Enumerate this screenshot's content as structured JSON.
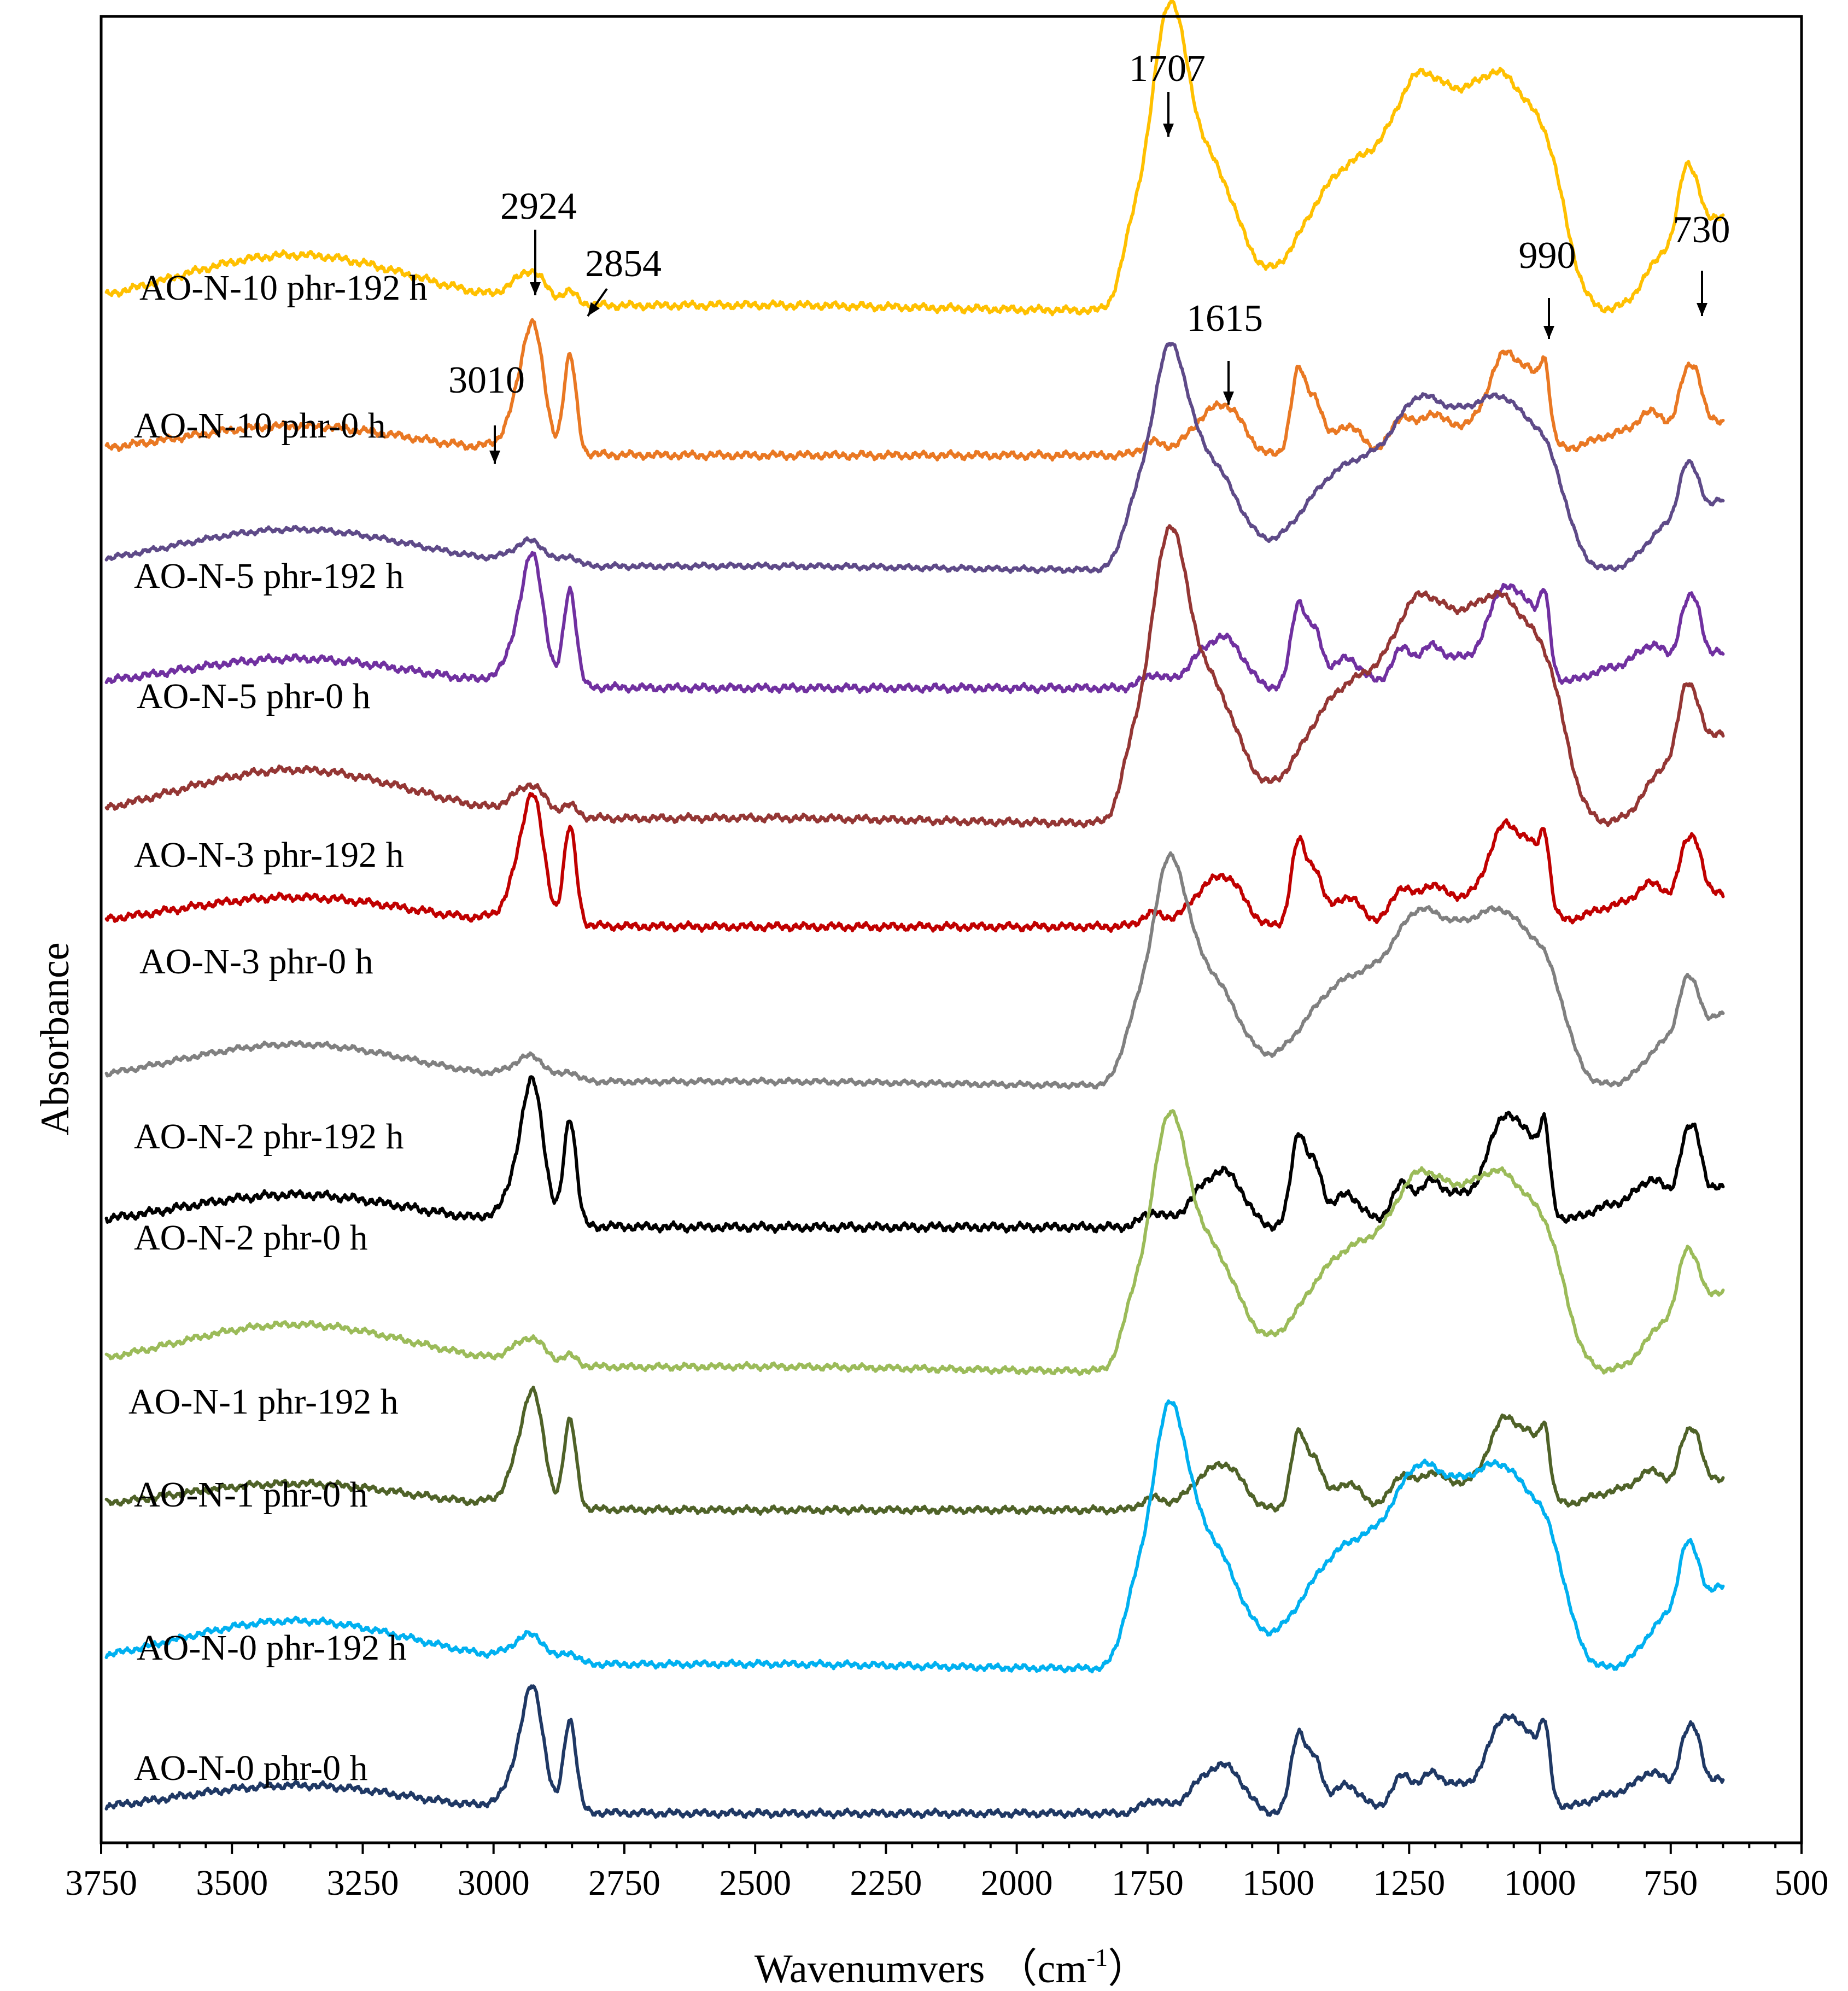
{
  "chart_data": {
    "type": "line",
    "title": "",
    "xlabel": "Wavenumvers （cm ⁻¹）",
    "xlabel_main": "Wavenumvers",
    "xlabel_unit_open": "（cm",
    "xlabel_unit_sup": "-1",
    "xlabel_unit_close": "）",
    "ylabel": "Absorbance",
    "xlim": [
      3750,
      500
    ],
    "x_reversed": true,
    "y_ticks_shown": false,
    "legend": "inline labels left",
    "grid": false,
    "x_ticks": [
      3750,
      3500,
      3250,
      3000,
      2750,
      2500,
      2250,
      2000,
      1750,
      1500,
      1250,
      1000,
      750,
      500
    ],
    "series": [
      {
        "name": "AO-N-10 phr-192 h",
        "color": "#FFC000",
        "offset": 26.0,
        "type": "aged",
        "scale": 1.0,
        "variant": 0
      },
      {
        "name": "AO-N-10 phr-0 h",
        "color": "#E97823",
        "offset": 23.55,
        "type": "fresh",
        "scale": 1.0,
        "variant": 0
      },
      {
        "name": "AO-N-5 phr-192 h",
        "color": "#5E4A88",
        "offset": 21.6,
        "type": "aged",
        "scale": 0.73,
        "variant": 1
      },
      {
        "name": "AO-N-5 phr-0 h",
        "color": "#7030A0",
        "offset": 19.6,
        "type": "fresh",
        "scale": 1.0,
        "variant": 1
      },
      {
        "name": "AO-N-3 phr-192 h",
        "color": "#943634",
        "offset": 17.3,
        "type": "aged",
        "scale": 0.96,
        "variant": 2
      },
      {
        "name": "AO-N-3 phr-0 h",
        "color": "#C00000",
        "offset": 15.55,
        "type": "fresh",
        "scale": 1.0,
        "variant": 2
      },
      {
        "name": "AO-N-2 phr-192 h",
        "color": "#808080",
        "offset": 12.85,
        "type": "aged",
        "scale": 0.74,
        "variant": 3
      },
      {
        "name": "AO-N-2 phr-0 h",
        "color": "#000000",
        "offset": 10.45,
        "type": "fresh",
        "scale": 1.1,
        "variant": 3
      },
      {
        "name": "AO-N-1 phr-192 h",
        "color": "#9BBB59",
        "offset": 8.0,
        "type": "aged",
        "scale": 0.84,
        "variant": 4
      },
      {
        "name": "AO-N-1 phr-0 h",
        "color": "#4F6228",
        "offset": 5.65,
        "type": "fresh",
        "scale": 0.9,
        "variant": 4
      },
      {
        "name": "AO-N-0 phr-192 h",
        "color": "#00B0F0",
        "offset": 2.95,
        "type": "aged",
        "scale": 0.86,
        "variant": 5
      },
      {
        "name": "AO-N-0 phr-0 h",
        "color": "#1F3864",
        "offset": 0.5,
        "type": "fresh",
        "scale": 0.95,
        "variant": 5
      }
    ],
    "annotations": [
      {
        "text": "1707",
        "x": 1707
      },
      {
        "text": "2924",
        "x": 2924
      },
      {
        "text": "2854",
        "x": 2854
      },
      {
        "text": "3010",
        "x": 3010
      },
      {
        "text": "1615",
        "x": 1615
      },
      {
        "text": "990",
        "x": 990
      },
      {
        "text": "730",
        "x": 730
      }
    ]
  }
}
